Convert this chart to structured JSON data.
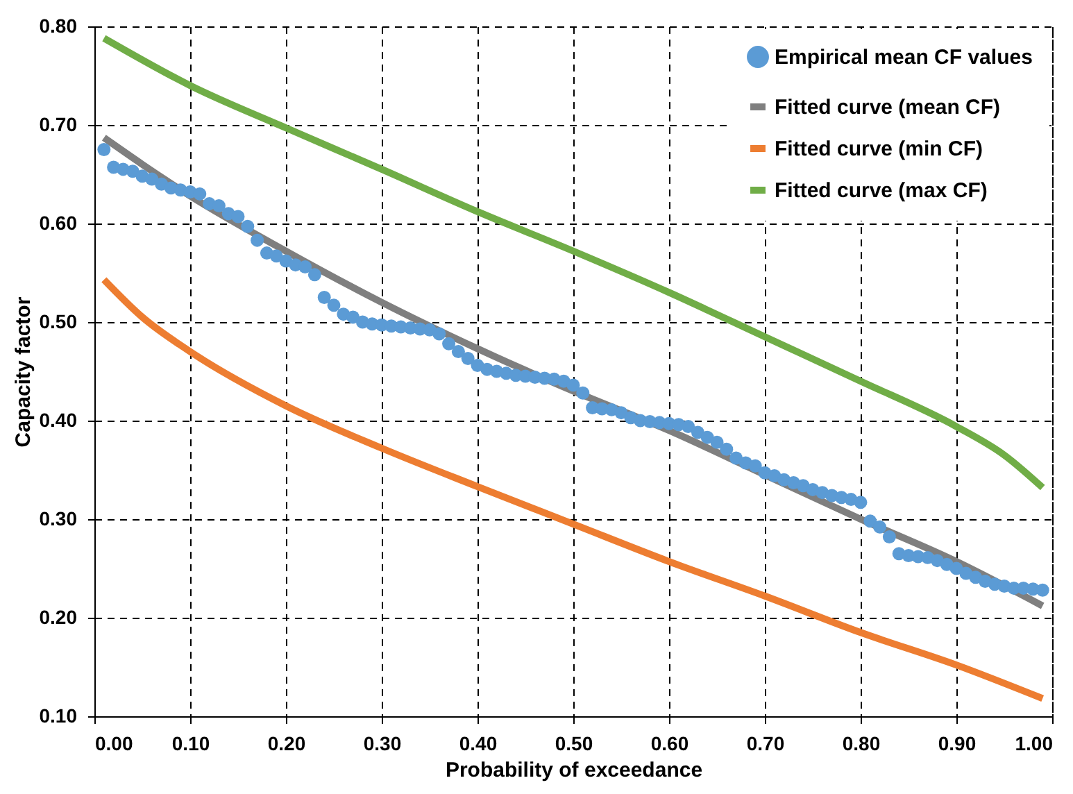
{
  "chart_data": {
    "type": "scatter",
    "xlabel": "Probability of exceedance",
    "ylabel": "Capacity factor",
    "xlim": [
      0,
      1
    ],
    "ylim": [
      0.1,
      0.8
    ],
    "xticks": [
      {
        "value": 0,
        "label": "0.00"
      },
      {
        "value": 0.1,
        "label": "0.10"
      },
      {
        "value": 0.2,
        "label": "0.20"
      },
      {
        "value": 0.3,
        "label": "0.30"
      },
      {
        "value": 0.4,
        "label": "0.40"
      },
      {
        "value": 0.5,
        "label": "0.50"
      },
      {
        "value": 0.6,
        "label": "0.60"
      },
      {
        "value": 0.7,
        "label": "0.70"
      },
      {
        "value": 0.8,
        "label": "0.80"
      },
      {
        "value": 0.9,
        "label": "0.90"
      },
      {
        "value": 1,
        "label": "1.00"
      }
    ],
    "yticks": [
      {
        "value": 0.1,
        "label": "0.10"
      },
      {
        "value": 0.2,
        "label": "0.20"
      },
      {
        "value": 0.3,
        "label": "0.30"
      },
      {
        "value": 0.4,
        "label": "0.40"
      },
      {
        "value": 0.5,
        "label": "0.50"
      },
      {
        "value": 0.6,
        "label": "0.60"
      },
      {
        "value": 0.7,
        "label": "0.70"
      },
      {
        "value": 0.8,
        "label": "0.80"
      }
    ],
    "grid": true,
    "legend": "top right",
    "series": [
      {
        "name": "Empirical mean CF values",
        "marker": "circle",
        "color": "#5b9bd5",
        "x": [
          0.01,
          0.02,
          0.03,
          0.04,
          0.05,
          0.06,
          0.07,
          0.08,
          0.09,
          0.1,
          0.11,
          0.12,
          0.13,
          0.14,
          0.15,
          0.16,
          0.17,
          0.18,
          0.19,
          0.2,
          0.21,
          0.22,
          0.23,
          0.24,
          0.25,
          0.26,
          0.27,
          0.28,
          0.29,
          0.3,
          0.31,
          0.32,
          0.33,
          0.34,
          0.35,
          0.36,
          0.37,
          0.38,
          0.39,
          0.4,
          0.41,
          0.42,
          0.43,
          0.44,
          0.45,
          0.46,
          0.47,
          0.48,
          0.49,
          0.5,
          0.51,
          0.52,
          0.53,
          0.54,
          0.55,
          0.56,
          0.57,
          0.58,
          0.59,
          0.6,
          0.61,
          0.62,
          0.63,
          0.64,
          0.65,
          0.66,
          0.67,
          0.68,
          0.69,
          0.7,
          0.71,
          0.72,
          0.73,
          0.74,
          0.75,
          0.76,
          0.77,
          0.78,
          0.79,
          0.8,
          0.81,
          0.82,
          0.83,
          0.84,
          0.85,
          0.86,
          0.87,
          0.88,
          0.89,
          0.9,
          0.91,
          0.92,
          0.93,
          0.94,
          0.95,
          0.96,
          0.97,
          0.98,
          0.99
        ],
        "values": [
          0.675,
          0.657,
          0.655,
          0.653,
          0.648,
          0.645,
          0.64,
          0.636,
          0.634,
          0.632,
          0.63,
          0.62,
          0.618,
          0.61,
          0.607,
          0.597,
          0.583,
          0.57,
          0.567,
          0.562,
          0.558,
          0.556,
          0.548,
          0.525,
          0.517,
          0.508,
          0.505,
          0.5,
          0.498,
          0.497,
          0.496,
          0.495,
          0.494,
          0.493,
          0.492,
          0.488,
          0.478,
          0.47,
          0.463,
          0.456,
          0.452,
          0.45,
          0.448,
          0.446,
          0.445,
          0.444,
          0.443,
          0.442,
          0.44,
          0.436,
          0.428,
          0.413,
          0.412,
          0.411,
          0.408,
          0.403,
          0.4,
          0.399,
          0.398,
          0.397,
          0.396,
          0.394,
          0.388,
          0.383,
          0.378,
          0.371,
          0.362,
          0.357,
          0.354,
          0.347,
          0.344,
          0.34,
          0.337,
          0.334,
          0.33,
          0.327,
          0.324,
          0.322,
          0.32,
          0.317,
          0.298,
          0.292,
          0.282,
          0.265,
          0.263,
          0.262,
          0.261,
          0.258,
          0.254,
          0.25,
          0.245,
          0.241,
          0.237,
          0.234,
          0.232,
          0.23,
          0.23,
          0.229,
          0.228
        ]
      },
      {
        "name": "Fitted curve (mean CF)",
        "type": "line",
        "marker": "none",
        "color": "#7f7f7f",
        "x": [
          0.01,
          0.05,
          0.1,
          0.2,
          0.3,
          0.4,
          0.5,
          0.6,
          0.7,
          0.8,
          0.9,
          0.99
        ],
        "values": [
          0.687,
          0.66,
          0.628,
          0.572,
          0.52,
          0.473,
          0.43,
          0.39,
          0.345,
          0.3,
          0.257,
          0.212
        ]
      },
      {
        "name": "Fitted curve (min CF)",
        "type": "line",
        "marker": "none",
        "color": "#ed7d31",
        "x": [
          0.01,
          0.05,
          0.1,
          0.2,
          0.3,
          0.4,
          0.5,
          0.6,
          0.7,
          0.8,
          0.9,
          0.99
        ],
        "values": [
          0.543,
          0.505,
          0.47,
          0.415,
          0.372,
          0.333,
          0.295,
          0.257,
          0.222,
          0.185,
          0.152,
          0.118
        ]
      },
      {
        "name": "Fitted curve (max CF)",
        "type": "line",
        "marker": "none",
        "color": "#70ad47",
        "x": [
          0.01,
          0.1,
          0.2,
          0.3,
          0.4,
          0.5,
          0.6,
          0.7,
          0.8,
          0.9,
          0.95,
          0.99
        ],
        "values": [
          0.788,
          0.74,
          0.697,
          0.655,
          0.612,
          0.572,
          0.53,
          0.485,
          0.44,
          0.394,
          0.365,
          0.332
        ]
      }
    ]
  }
}
